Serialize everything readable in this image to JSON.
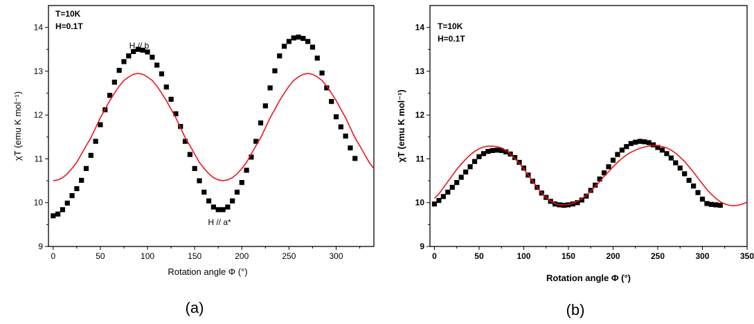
{
  "chart_data": [
    {
      "type": "scatter",
      "panel_label": "(a)",
      "title": "",
      "annotations": [
        "T=10K",
        "H=0.1T"
      ],
      "point_labels": [
        "H // b",
        "H // a*"
      ],
      "xlabel": "Rotation angle Φ (°)",
      "ylabel": "χT (emu K mol⁻¹)",
      "xlim": [
        -5,
        340
      ],
      "ylim": [
        9,
        14.5
      ],
      "xticks": [
        "0",
        "50",
        "100",
        "150",
        "200",
        "250",
        "300"
      ],
      "yticks": [
        "9",
        "10",
        "11",
        "12",
        "13",
        "14"
      ],
      "grid": false,
      "series": [
        {
          "kind": "scatter",
          "color": "#000000",
          "x": [
            0,
            5,
            10,
            15,
            20,
            25,
            30,
            35,
            40,
            45,
            50,
            55,
            60,
            65,
            70,
            75,
            80,
            85,
            90,
            95,
            100,
            105,
            110,
            115,
            120,
            125,
            130,
            135,
            140,
            145,
            150,
            155,
            160,
            165,
            170,
            175,
            180,
            185,
            190,
            195,
            200,
            205,
            210,
            215,
            220,
            225,
            230,
            235,
            240,
            245,
            250,
            255,
            260,
            265,
            270,
            275,
            280,
            285,
            290,
            295,
            300,
            305,
            310,
            315,
            320
          ],
          "y": [
            9.7,
            9.74,
            9.84,
            9.99,
            10.16,
            10.32,
            10.51,
            10.78,
            11.08,
            11.4,
            11.78,
            12.12,
            12.45,
            12.75,
            13.02,
            13.22,
            13.35,
            13.45,
            13.5,
            13.48,
            13.44,
            13.32,
            13.14,
            12.94,
            12.64,
            12.36,
            12.03,
            11.74,
            11.4,
            11.1,
            10.78,
            10.5,
            10.24,
            10.04,
            9.9,
            9.84,
            9.84,
            9.9,
            10.04,
            10.24,
            10.46,
            10.74,
            11.04,
            11.4,
            11.82,
            12.21,
            12.62,
            13.01,
            13.35,
            13.57,
            13.68,
            13.76,
            13.78,
            13.75,
            13.68,
            13.55,
            13.3,
            12.96,
            12.62,
            12.31,
            11.96,
            11.73,
            11.52,
            11.25,
            11.01
          ]
        },
        {
          "kind": "line",
          "color": "#e8141b",
          "x": [
            0,
            5,
            10,
            15,
            20,
            25,
            30,
            35,
            40,
            45,
            50,
            55,
            60,
            65,
            70,
            75,
            80,
            85,
            90,
            95,
            100,
            105,
            110,
            115,
            120,
            125,
            130,
            135,
            140,
            145,
            150,
            155,
            160,
            165,
            170,
            175,
            180,
            185,
            190,
            195,
            200,
            205,
            210,
            215,
            220,
            225,
            230,
            235,
            240,
            245,
            250,
            255,
            260,
            265,
            270,
            275,
            280,
            285,
            290,
            295,
            300,
            305,
            310,
            315,
            320,
            325,
            330,
            335,
            340
          ],
          "y": [
            10.5,
            10.52,
            10.57,
            10.66,
            10.78,
            10.92,
            11.11,
            11.3,
            11.48,
            11.71,
            11.94,
            12.13,
            12.33,
            12.5,
            12.66,
            12.79,
            12.87,
            12.93,
            12.95,
            12.93,
            12.87,
            12.79,
            12.66,
            12.5,
            12.33,
            12.13,
            11.94,
            11.71,
            11.48,
            11.3,
            11.11,
            10.92,
            10.78,
            10.66,
            10.57,
            10.52,
            10.5,
            10.52,
            10.57,
            10.66,
            10.78,
            10.92,
            11.11,
            11.3,
            11.48,
            11.71,
            11.94,
            12.13,
            12.33,
            12.5,
            12.66,
            12.79,
            12.87,
            12.93,
            12.95,
            12.93,
            12.87,
            12.79,
            12.66,
            12.5,
            12.33,
            12.13,
            11.94,
            11.71,
            11.48,
            11.3,
            11.11,
            10.92,
            10.78
          ]
        }
      ]
    },
    {
      "type": "scatter",
      "panel_label": "(b)",
      "title": "",
      "annotations": [
        "T=10K",
        "H=0.1T"
      ],
      "xlabel": "Rotation angle Φ (°)",
      "ylabel": "χT (emu K mol⁻¹)",
      "xlim": [
        -5,
        350
      ],
      "ylim": [
        9,
        14.5
      ],
      "xticks": [
        "0",
        "50",
        "100",
        "150",
        "200",
        "250",
        "300",
        "350"
      ],
      "yticks": [
        "9",
        "10",
        "11",
        "12",
        "13",
        "14"
      ],
      "grid": false,
      "series": [
        {
          "kind": "scatter",
          "color": "#000000",
          "x": [
            0,
            5,
            10,
            15,
            20,
            25,
            30,
            35,
            40,
            45,
            50,
            55,
            60,
            65,
            70,
            75,
            80,
            85,
            90,
            95,
            100,
            105,
            110,
            115,
            120,
            125,
            130,
            135,
            140,
            145,
            150,
            155,
            160,
            165,
            170,
            175,
            180,
            185,
            190,
            195,
            200,
            205,
            210,
            215,
            220,
            225,
            230,
            235,
            240,
            245,
            250,
            255,
            260,
            265,
            270,
            275,
            280,
            285,
            290,
            295,
            300,
            305,
            310,
            315,
            320
          ],
          "y": [
            9.97,
            10.05,
            10.14,
            10.24,
            10.35,
            10.46,
            10.58,
            10.7,
            10.82,
            10.94,
            11.05,
            11.12,
            11.17,
            11.19,
            11.2,
            11.19,
            11.16,
            11.11,
            11.03,
            10.92,
            10.79,
            10.63,
            10.49,
            10.35,
            10.22,
            10.12,
            10.03,
            9.97,
            9.95,
            9.94,
            9.95,
            9.97,
            10.0,
            10.06,
            10.15,
            10.28,
            10.4,
            10.54,
            10.68,
            10.82,
            10.97,
            11.1,
            11.2,
            11.28,
            11.35,
            11.38,
            11.4,
            11.39,
            11.37,
            11.32,
            11.26,
            11.2,
            11.12,
            11.02,
            10.91,
            10.79,
            10.66,
            10.51,
            10.38,
            10.23,
            10.08,
            9.98,
            9.96,
            9.95,
            9.94
          ]
        },
        {
          "kind": "line",
          "color": "#e8141b",
          "x": [
            0,
            5,
            10,
            15,
            20,
            25,
            30,
            35,
            40,
            45,
            50,
            55,
            60,
            65,
            70,
            75,
            80,
            85,
            90,
            95,
            100,
            105,
            110,
            115,
            120,
            125,
            130,
            135,
            140,
            145,
            150,
            155,
            160,
            165,
            170,
            175,
            180,
            185,
            190,
            195,
            200,
            205,
            210,
            215,
            220,
            225,
            230,
            235,
            240,
            245,
            250,
            255,
            260,
            265,
            270,
            275,
            280,
            285,
            290,
            295,
            300,
            305,
            310,
            315,
            320,
            325,
            330,
            335,
            340,
            345,
            350
          ],
          "y": [
            10.1,
            10.2,
            10.34,
            10.48,
            10.62,
            10.76,
            10.88,
            10.99,
            11.09,
            11.17,
            11.23,
            11.27,
            11.29,
            11.29,
            11.28,
            11.25,
            11.19,
            11.11,
            11.01,
            10.9,
            10.77,
            10.63,
            10.49,
            10.35,
            10.22,
            10.12,
            10.04,
            9.98,
            9.95,
            9.95,
            9.96,
            9.99,
            10.03,
            10.09,
            10.17,
            10.26,
            10.37,
            10.48,
            10.6,
            10.71,
            10.82,
            10.92,
            11.01,
            11.09,
            11.15,
            11.2,
            11.24,
            11.27,
            11.29,
            11.3,
            11.3,
            11.28,
            11.25,
            11.2,
            11.13,
            11.04,
            10.94,
            10.82,
            10.7,
            10.56,
            10.43,
            10.3,
            10.19,
            10.1,
            10.02,
            9.97,
            9.94,
            9.93,
            9.94,
            9.97,
            10.01
          ]
        }
      ]
    }
  ]
}
